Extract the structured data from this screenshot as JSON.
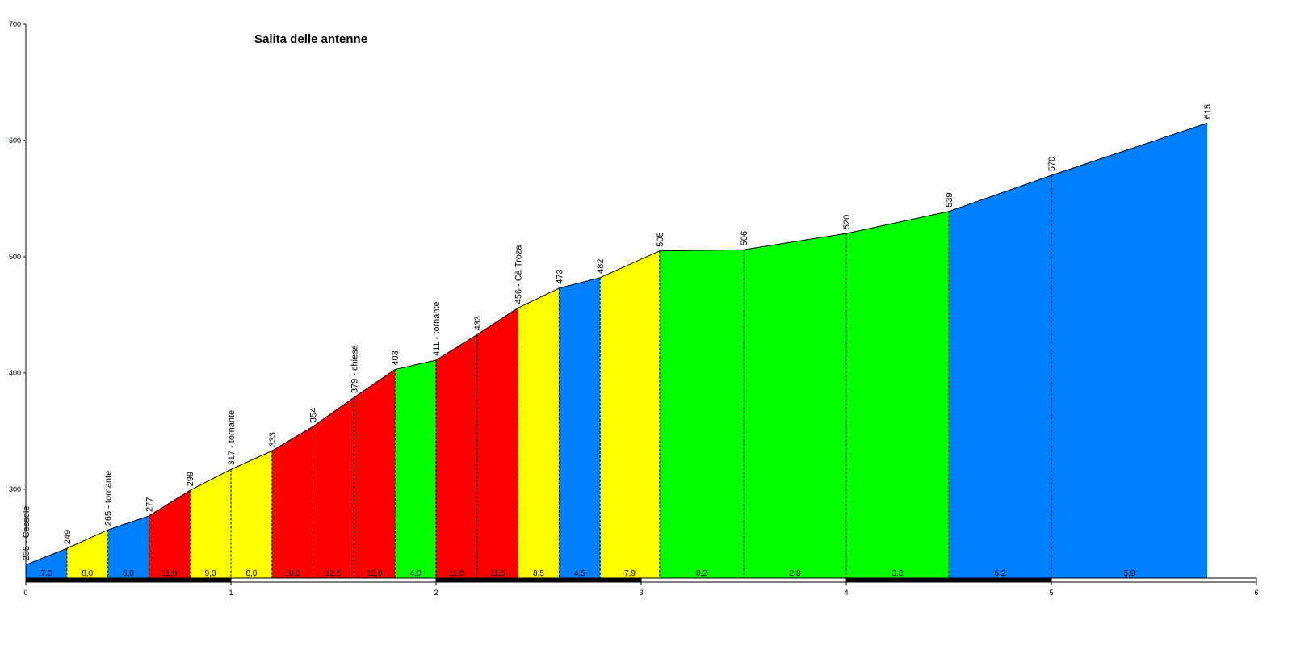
{
  "chart_data": {
    "type": "profile",
    "title": "Salita delle antenne",
    "x": [
      0,
      0.2,
      0.4,
      0.6,
      0.8,
      1.0,
      1.2,
      1.4,
      1.6,
      1.8,
      2.0,
      2.2,
      2.4,
      2.6,
      2.8,
      3.09,
      3.5,
      4.0,
      4.5,
      5.0,
      5.76
    ],
    "values": [
      235,
      249,
      265,
      277,
      299,
      317,
      333,
      354,
      379,
      403,
      411,
      433,
      456,
      473,
      482,
      505,
      506,
      520,
      539,
      570,
      615
    ],
    "value_labels": [
      "235 - Cessole",
      "249",
      "265 - tornante",
      "277",
      "299",
      "317 - tornante",
      "333",
      "354",
      "379 - chiesa",
      "403",
      "411 - tornante",
      "433",
      "456 - Cà Troza",
      "473",
      "482",
      "505",
      "506",
      "520",
      "539",
      "570",
      "615"
    ],
    "gradients": [
      7.0,
      8.0,
      6.0,
      11.0,
      9.0,
      8.0,
      10.5,
      12.5,
      12.0,
      4.0,
      11.0,
      11.5,
      8.5,
      4.5,
      7.9,
      0.2,
      2.8,
      3.8,
      6.2,
      5.9
    ],
    "gradient_labels": [
      "7,0",
      "8,0",
      "6,0",
      "11,0",
      "9,0",
      "8,0",
      "10,5",
      "12,5",
      "12,0",
      "4,0",
      "11,0",
      "11,5",
      "8,5",
      "4,5",
      "7,9",
      "0,2",
      "2,8",
      "3,8",
      "6,2",
      "5,9"
    ],
    "segment_colors": [
      "#0080ff",
      "#ffff00",
      "#0080ff",
      "#ff0000",
      "#ffff00",
      "#ffff00",
      "#ff0000",
      "#ff0000",
      "#ff0000",
      "#00ff00",
      "#ff0000",
      "#ff0000",
      "#ffff00",
      "#0080ff",
      "#ffff00",
      "#00ff00",
      "#00ff00",
      "#00ff00",
      "#0080ff",
      "#0080ff"
    ],
    "xlim": [
      0,
      6
    ],
    "xticks": [
      0,
      1,
      2,
      3,
      4,
      5,
      6
    ],
    "ylim": [
      220,
      700
    ],
    "yticks": [
      300,
      400,
      500,
      600,
      700
    ]
  }
}
